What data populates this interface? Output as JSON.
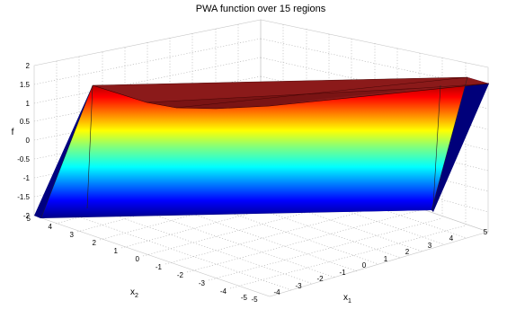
{
  "chart_data": {
    "type": "surface",
    "title": "PWA function over 15 regions",
    "zlabel": "f",
    "xlabel": {
      "main": "x",
      "sub": "1"
    },
    "ylabel": {
      "main": "x",
      "sub": "2"
    },
    "zlim": [
      -2,
      2
    ],
    "xlim": [
      -5,
      5
    ],
    "ylim": [
      -5,
      5
    ],
    "z_ticks": [
      "2",
      "1.5",
      "1",
      "0.5",
      "0",
      "-0.5",
      "-1",
      "-1.5",
      "-2"
    ],
    "x_ticks": [
      "-5",
      "-4",
      "-3",
      "-2",
      "-1",
      "0",
      "1",
      "2",
      "3",
      "4",
      "5"
    ],
    "y_ticks": [
      "5",
      "4",
      "3",
      "2",
      "1",
      "0",
      "-1",
      "-2",
      "-3",
      "-4",
      "-5"
    ],
    "grid": true,
    "colormap": "jet",
    "regions": 15,
    "top_color": "#8b1a1a"
  }
}
